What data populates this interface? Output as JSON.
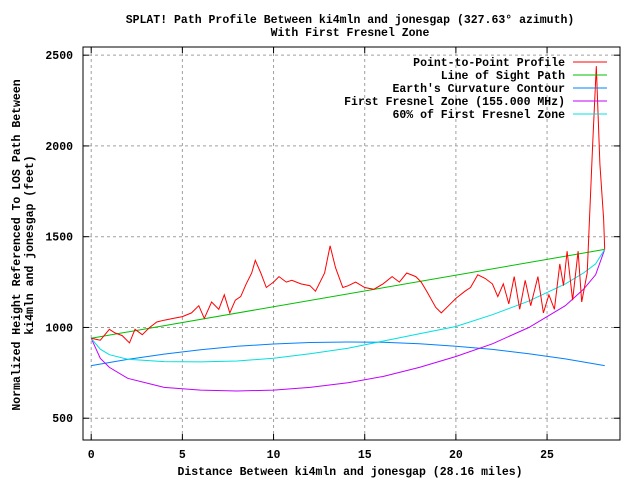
{
  "chart_data": {
    "type": "line",
    "title": [
      "SPLAT! Path Profile Between ki4mln and jonesgap (327.63° azimuth)",
      "With First Fresnel Zone"
    ],
    "xlabel": "Distance Between ki4mln and jonesgap (28.16 miles)",
    "ylabel": [
      "Normalized Height Referenced To LOS Path Between",
      "ki4mln and jonesgap (feet)"
    ],
    "xlim": [
      -0.45,
      29.0
    ],
    "ylim": [
      380,
      2545
    ],
    "xticks": [
      0,
      5,
      10,
      15,
      20,
      25
    ],
    "yticks": [
      500,
      1000,
      1500,
      2000,
      2500
    ],
    "grid": true,
    "legend_position": "top-right",
    "series": [
      {
        "name": "Point-to-Point Profile",
        "color": "#ff0000",
        "x": [
          0,
          0.5,
          1.0,
          1.3,
          1.7,
          2.1,
          2.4,
          2.8,
          3.2,
          3.6,
          4.0,
          4.5,
          5.0,
          5.5,
          5.9,
          6.2,
          6.6,
          7.0,
          7.3,
          7.6,
          7.9,
          8.2,
          8.5,
          8.8,
          9.0,
          9.3,
          9.6,
          10.0,
          10.3,
          10.7,
          11.0,
          11.5,
          12.0,
          12.3,
          12.8,
          13.1,
          13.4,
          13.8,
          14.1,
          14.5,
          15.0,
          15.5,
          16.0,
          16.5,
          16.9,
          17.3,
          17.8,
          18.1,
          18.4,
          18.9,
          19.2,
          19.6,
          20.0,
          20.5,
          20.8,
          21.2,
          21.6,
          22.0,
          22.3,
          22.6,
          22.9,
          23.2,
          23.5,
          23.8,
          24.1,
          24.5,
          24.8,
          25.1,
          25.4,
          25.7,
          25.9,
          26.1,
          26.4,
          26.7,
          26.9,
          27.2,
          27.5,
          27.7,
          27.9,
          28.1,
          28.16
        ],
        "y": [
          940,
          930,
          990,
          970,
          955,
          915,
          990,
          960,
          1000,
          1030,
          1040,
          1050,
          1060,
          1080,
          1120,
          1050,
          1140,
          1100,
          1180,
          1080,
          1150,
          1170,
          1240,
          1300,
          1370,
          1300,
          1220,
          1250,
          1280,
          1250,
          1260,
          1240,
          1230,
          1200,
          1300,
          1450,
          1330,
          1220,
          1230,
          1250,
          1220,
          1210,
          1240,
          1280,
          1250,
          1300,
          1280,
          1250,
          1200,
          1110,
          1080,
          1120,
          1160,
          1200,
          1220,
          1290,
          1270,
          1240,
          1170,
          1240,
          1130,
          1280,
          1100,
          1260,
          1120,
          1280,
          1080,
          1180,
          1100,
          1350,
          1230,
          1420,
          1150,
          1420,
          1140,
          1300,
          2000,
          2440,
          1900,
          1600,
          1430
        ]
      },
      {
        "name": "Line of Sight Path",
        "color": "#00c000",
        "x": [
          0,
          28.16
        ],
        "y": [
          940,
          1430
        ]
      },
      {
        "name": "Earth's Curvature Contour",
        "color": "#0080ff",
        "x": [
          0,
          2,
          4,
          6,
          8,
          10,
          12,
          14.08,
          16,
          18,
          20,
          22,
          24,
          26,
          28.16
        ],
        "y": [
          790,
          824,
          853,
          877,
          896,
          909,
          917,
          920,
          918,
          910,
          897,
          879,
          855,
          827,
          790
        ]
      },
      {
        "name": "First Fresnel Zone (155.000 MHz)",
        "color": "#c000ff",
        "x": [
          0,
          0.5,
          1,
          2,
          4,
          6,
          8,
          10,
          12,
          14.08,
          16,
          18,
          20,
          22,
          24,
          26,
          27,
          27.66,
          28.16
        ],
        "y": [
          940,
          830,
          780,
          720,
          670,
          655,
          650,
          655,
          670,
          695,
          730,
          780,
          840,
          910,
          1000,
          1120,
          1210,
          1290,
          1430
        ]
      },
      {
        "name": "60% of First Fresnel Zone",
        "color": "#00e0e0",
        "x": [
          0,
          0.5,
          1,
          2,
          4,
          6,
          8,
          10,
          12,
          14.08,
          16,
          18,
          20,
          22,
          24,
          26,
          27,
          27.66,
          28.16
        ],
        "y": [
          940,
          880,
          850,
          825,
          812,
          810,
          815,
          830,
          855,
          885,
          925,
          965,
          1005,
          1070,
          1145,
          1240,
          1300,
          1350,
          1430
        ]
      }
    ]
  }
}
